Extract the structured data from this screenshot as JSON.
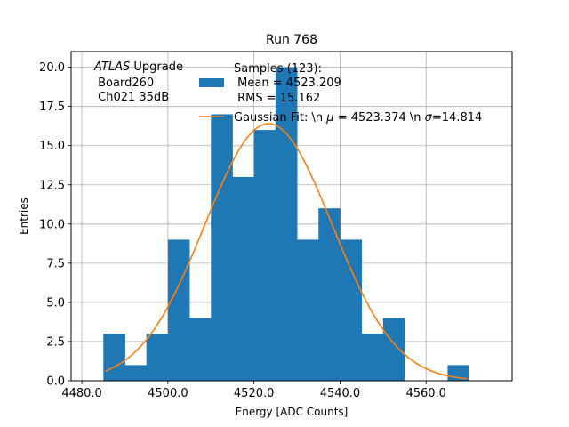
{
  "chart_data": {
    "type": "bar",
    "title": "Run 768",
    "xlabel": "Energy [ADC Counts]",
    "ylabel": "Entries",
    "xlim": [
      4477.5,
      4580.0
    ],
    "ylim": [
      0.0,
      21.0
    ],
    "x_ticks": [
      {
        "value": 4480,
        "label": "4480.0"
      },
      {
        "value": 4500,
        "label": "4500.0"
      },
      {
        "value": 4520,
        "label": "4520.0"
      },
      {
        "value": 4540,
        "label": "4540.0"
      },
      {
        "value": 4560,
        "label": "4560.0"
      }
    ],
    "y_ticks": [
      {
        "value": 0,
        "label": "0.0"
      },
      {
        "value": 2.5,
        "label": "2.5"
      },
      {
        "value": 5,
        "label": "5.0"
      },
      {
        "value": 7.5,
        "label": "7.5"
      },
      {
        "value": 10,
        "label": "10.0"
      },
      {
        "value": 12.5,
        "label": "12.5"
      },
      {
        "value": 15,
        "label": "15.0"
      },
      {
        "value": 17.5,
        "label": "17.5"
      },
      {
        "value": 20,
        "label": "20.0"
      }
    ],
    "grid": true,
    "histogram": {
      "bin_width": 5,
      "bin_edges": [
        4485,
        4490,
        4495,
        4500,
        4505,
        4510,
        4515,
        4520,
        4525,
        4530,
        4535,
        4540,
        4545,
        4550,
        4555,
        4560,
        4565,
        4570
      ],
      "counts": [
        3,
        1,
        3,
        9,
        4,
        17,
        13,
        16,
        20,
        9,
        11,
        9,
        3,
        4,
        0,
        0,
        1
      ],
      "color": "#1f77b4"
    },
    "fit": {
      "type": "gaussian",
      "mu": 4523.374,
      "sigma": 14.814,
      "amplitude": 16.4,
      "x_range": [
        4485.5,
        4569.5
      ],
      "color": "#ff7f0e"
    },
    "legend": {
      "placement": "top-right",
      "entries": [
        {
          "series": "histogram",
          "label_lines": [
            "Samples (123):",
            " Mean = 4523.209",
            " RMS = 15.162"
          ]
        },
        {
          "series": "fit",
          "label_lines": [
            "Gaussian Fit: \\n $\\mu$ = 4523.374 \\n $\\sigma$=14.814"
          ]
        }
      ]
    },
    "annotation": {
      "italic_part": "ATLAS",
      "normal_part": " Upgrade",
      "lines": [
        " Board260",
        " Ch021 35dB"
      ],
      "placement": "top-left"
    }
  }
}
